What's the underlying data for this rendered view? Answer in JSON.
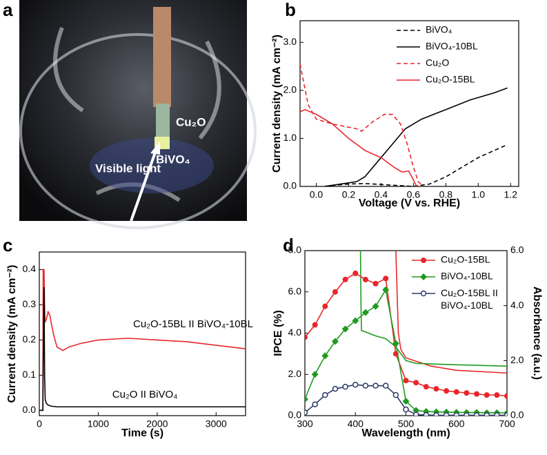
{
  "photo": {
    "panel": "a",
    "labels": [
      "Cu₂O",
      "BiVO₄",
      "Visible light"
    ]
  },
  "chart_data": [
    {
      "type": "line",
      "panel": "b",
      "x_label": "Voltage (V vs. RHE)",
      "y_label": "Current density (mA cm⁻²)",
      "xlim": [
        -0.1,
        1.25
      ],
      "xticks": [
        {
          "value": 0,
          "label": "0.0"
        },
        0.2,
        0.4,
        0.6,
        0.8,
        {
          "value": 1,
          "label": "1.0"
        },
        1.2
      ],
      "ylim": [
        0,
        3.45
      ],
      "yticks": [
        {
          "value": 0,
          "label": "0.0"
        },
        {
          "value": 1,
          "label": "1.0"
        },
        {
          "value": 2,
          "label": "2.0"
        },
        {
          "value": 3,
          "label": "3.0"
        }
      ],
      "legend": "upper center",
      "series": [
        {
          "name": "BiVO₄",
          "color": "#000000",
          "dash": true,
          "x": [
            0.05,
            0.1,
            0.2,
            0.3,
            0.45,
            0.6,
            0.7,
            0.8,
            0.9,
            1.0,
            1.1,
            1.18
          ],
          "values": [
            0,
            0.02,
            0.05,
            0.06,
            0.03,
            0,
            0.05,
            0.2,
            0.4,
            0.6,
            0.75,
            0.87
          ]
        },
        {
          "name": "BiVO₄-10BL",
          "color": "#000000",
          "dash": false,
          "x": [
            0.05,
            0.15,
            0.25,
            0.3,
            0.35,
            0.45,
            0.55,
            0.65,
            0.8,
            0.95,
            1.1,
            1.18
          ],
          "values": [
            0,
            0.05,
            0.1,
            0.2,
            0.4,
            0.8,
            1.2,
            1.4,
            1.6,
            1.8,
            1.95,
            2.05
          ]
        },
        {
          "name": "Cu₂O",
          "color": "#e8262b",
          "dash": true,
          "x": [
            -0.1,
            -0.05,
            0,
            0.1,
            0.25,
            0.28,
            0.35,
            0.42,
            0.47,
            0.52,
            0.56,
            0.6,
            0.63,
            0.66
          ],
          "values": [
            2.55,
            1.7,
            1.4,
            1.3,
            1.2,
            1.15,
            1.35,
            1.5,
            1.5,
            1.3,
            0.9,
            0.4,
            0.1,
            0
          ]
        },
        {
          "name": "Cu₂O-15BL",
          "color": "#e8262b",
          "dash": false,
          "x": [
            -0.1,
            -0.07,
            0,
            0.1,
            0.2,
            0.3,
            0.4,
            0.48,
            0.53,
            0.57,
            0.59,
            0.62
          ],
          "values": [
            1.55,
            1.6,
            1.5,
            1.3,
            1.0,
            0.75,
            0.6,
            0.4,
            0.3,
            0.32,
            0.2,
            0
          ]
        }
      ]
    },
    {
      "type": "line",
      "panel": "c",
      "x_label": "Time (s)",
      "y_label": "Current density (mA cm⁻²)",
      "xlim": [
        0,
        3500
      ],
      "xticks": [
        0,
        1000,
        2000,
        3000
      ],
      "ylim": [
        -0.015,
        0.45
      ],
      "yticks": [
        {
          "value": 0,
          "label": "0.0"
        },
        0.1,
        0.2,
        0.3,
        0.4
      ],
      "annotations": [
        {
          "text": "Cu₂O-15BL II BiVO₄-10BL",
          "color": "#e8262b"
        },
        {
          "text": "Cu₂O II BiVO₄",
          "color": "#000000"
        }
      ],
      "series": [
        {
          "color": "#e8262b",
          "dash": false,
          "x": [
            0,
            60,
            65,
            70,
            80,
            90,
            100,
            120,
            150,
            180,
            200,
            250,
            300,
            400,
            500,
            700,
            1000,
            1500,
            2000,
            2500,
            3000,
            3500
          ],
          "values": [
            0,
            0,
            0.4,
            0.4,
            0.4,
            0.3,
            0.25,
            0.26,
            0.28,
            0.27,
            0.25,
            0.21,
            0.18,
            0.17,
            0.18,
            0.19,
            0.2,
            0.205,
            0.2,
            0.195,
            0.185,
            0.175
          ]
        },
        {
          "color": "#000000",
          "dash": false,
          "x": [
            0,
            60,
            70,
            80,
            90,
            100,
            120,
            150,
            200,
            300,
            500,
            1000,
            2000,
            3000,
            3500
          ],
          "values": [
            0,
            0,
            0.2,
            0.35,
            0.1,
            0.03,
            0.02,
            0.015,
            0.012,
            0.01,
            0.01,
            0.01,
            0.01,
            0.01,
            0.01
          ]
        }
      ]
    },
    {
      "type": "line",
      "panel": "d",
      "x_label": "Wavelength (nm)",
      "y_label": "IPCE (%)",
      "y2_label": "Absorbance (a.u.)",
      "xlim": [
        300,
        700
      ],
      "xticks": [
        300,
        400,
        500,
        600,
        700
      ],
      "ylim": [
        0,
        8
      ],
      "yticks": [
        {
          "value": 0,
          "label": "0.0"
        },
        {
          "value": 2,
          "label": "2.0"
        },
        {
          "value": 4,
          "label": "4.0"
        },
        {
          "value": 6,
          "label": "6.0"
        },
        {
          "value": 8,
          "label": "8.0"
        }
      ],
      "y2lim": [
        0,
        6
      ],
      "y2ticks": [
        {
          "value": 0,
          "label": "0.0"
        },
        {
          "value": 2,
          "label": "2.0"
        },
        {
          "value": 4,
          "label": "4.0"
        },
        {
          "value": 6,
          "label": "6.0"
        }
      ],
      "legend": "upper right",
      "series": [
        {
          "color": "#e8262b",
          "axis": "y2",
          "dash": false,
          "x": [
            480,
            485,
            490,
            500,
            550,
            600,
            700
          ],
          "values": [
            6,
            3,
            2.4,
            2.1,
            1.8,
            1.65,
            1.55
          ]
        },
        {
          "color": "#1f9a1f",
          "axis": "y2",
          "dash": false,
          "x": [
            410,
            411,
            412,
            440,
            460,
            480,
            500,
            520,
            600,
            700
          ],
          "values": [
            6,
            4,
            3.1,
            2.9,
            2.8,
            2.5,
            2.0,
            1.9,
            1.85,
            1.8
          ]
        },
        {
          "name": "Cu₂O-15BL",
          "color": "#e8262b",
          "marker": "circle",
          "dash": false,
          "x": [
            300,
            320,
            340,
            360,
            380,
            400,
            420,
            440,
            460,
            480,
            500,
            520,
            540,
            560,
            580,
            600,
            620,
            640,
            660,
            680,
            700
          ],
          "values": [
            3.8,
            4.4,
            5.3,
            6.0,
            6.6,
            6.9,
            6.6,
            6.4,
            6.65,
            3.0,
            1.7,
            1.6,
            1.4,
            1.3,
            1.2,
            1.15,
            1.1,
            1.05,
            1.0,
            1.0,
            0.95
          ]
        },
        {
          "name": "BiVO₄-10BL",
          "color": "#1f9a1f",
          "marker": "diamond",
          "dash": false,
          "x": [
            300,
            320,
            340,
            360,
            380,
            400,
            420,
            440,
            460,
            480,
            500,
            520,
            540,
            560,
            580,
            600,
            620,
            640,
            660,
            680,
            700
          ],
          "values": [
            0.8,
            2.0,
            2.9,
            3.6,
            4.2,
            4.6,
            5.0,
            5.3,
            6.1,
            3.5,
            0.7,
            0.25,
            0.2,
            0.18,
            0.17,
            0.16,
            0.15,
            0.15,
            0.14,
            0.14,
            0.13
          ]
        },
        {
          "name": "Cu₂O-15BL II BiVO₄-10BL",
          "color": "#2b3a66",
          "marker": "open-circle",
          "dash": false,
          "x": [
            300,
            320,
            340,
            360,
            380,
            400,
            420,
            440,
            460,
            480,
            500,
            520,
            540,
            560,
            580,
            600,
            620,
            640,
            660,
            680,
            700
          ],
          "values": [
            0.15,
            0.55,
            1.0,
            1.3,
            1.4,
            1.5,
            1.45,
            1.45,
            1.45,
            1.0,
            0.3,
            0.05,
            0.03,
            0.02,
            0.02,
            0.02,
            0.02,
            0.02,
            0.02,
            0.02,
            0.02
          ]
        }
      ]
    }
  ]
}
